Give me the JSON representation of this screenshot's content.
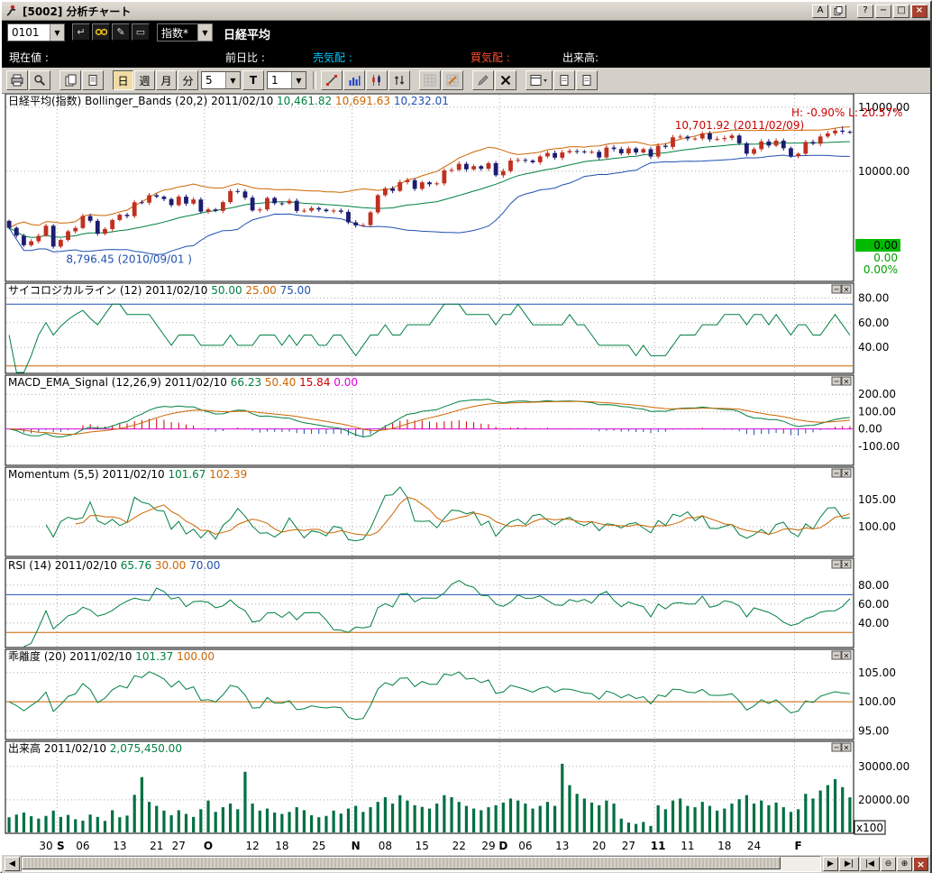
{
  "window": {
    "title": "[5002]  分析チャート",
    "a_button": "A",
    "help_button": "?",
    "min_button": "−",
    "max_button": "□",
    "close_button": "×"
  },
  "symbol_bar": {
    "code": "0101",
    "category": "指数*",
    "instrument": "日経平均"
  },
  "info_bar": {
    "current": "現在値 :",
    "prev_diff": "前日比 :",
    "sell_quote": "売気配 :",
    "buy_quote": "買気配 :",
    "volume": "出来高:"
  },
  "period_toolbar": {
    "daily": "日",
    "weekly": "週",
    "monthly": "月",
    "minutes": "分",
    "minute_interval": "5",
    "tick": "T",
    "bar_count": "1"
  },
  "scrollbar": {
    "left": "◀",
    "right": "▶",
    "skip_end": "▶|",
    "skip_start": "|◀",
    "zoom_out": "⊖",
    "zoom_in": "⊕",
    "close": "×"
  },
  "chart_data": {
    "type": "multi-panel-stock",
    "instrument": "日経平均(指数)",
    "date": "2011/02/10",
    "close": [
      9116,
      8995,
      8845,
      8906,
      8991,
      9149,
      8824,
      8927,
      9062,
      9114,
      9301,
      9226,
      9024,
      9098,
      9239,
      9321,
      9299,
      9516,
      9509,
      9626,
      9602,
      9566,
      9471,
      9603,
      9495,
      9559,
      9369,
      9404,
      9381,
      9518,
      9691,
      9684,
      9588,
      9388,
      9403,
      9583,
      9500,
      9498,
      9539,
      9381,
      9385,
      9426,
      9401,
      9377,
      9387,
      9366,
      9202,
      9154,
      9159,
      9358,
      9626,
      9732,
      9694,
      9830,
      9861,
      9725,
      9827,
      9797,
      9811,
      10014,
      10022,
      10116,
      10030,
      10079,
      10039,
      10126,
      9937,
      10004,
      10168,
      10178,
      10167,
      10141,
      10232,
      10285,
      10212,
      10294,
      10316,
      10310,
      10304,
      10304,
      10216,
      10371,
      10347,
      10280,
      10356,
      10293,
      10345,
      10229,
      10399,
      10380,
      10530,
      10541,
      10511,
      10512,
      10590,
      10499,
      10503,
      10519,
      10558,
      10437,
      10275,
      10346,
      10465,
      10402,
      10478,
      10360,
      10237,
      10274,
      10457,
      10431,
      10543,
      10592,
      10635,
      10617,
      10605
    ],
    "volume_x100": [
      14800,
      15600,
      16200,
      15100,
      14400,
      15200,
      16800,
      14900,
      15500,
      14200,
      13800,
      15600,
      14900,
      13700,
      16900,
      14800,
      15300,
      21500,
      26800,
      19400,
      18200,
      16800,
      15400,
      16900,
      15800,
      14900,
      17200,
      19800,
      16400,
      17800,
      18900,
      17200,
      28400,
      18900,
      16800,
      17400,
      16200,
      15800,
      16400,
      17800,
      16900,
      15400,
      14800,
      15200,
      16800,
      15900,
      17400,
      18200,
      16400,
      17800,
      19400,
      20800,
      18900,
      21400,
      19800,
      18400,
      17900,
      17400,
      18900,
      21400,
      20800,
      19400,
      18200,
      17400,
      16900,
      17800,
      18400,
      19200,
      20400,
      19800,
      18900,
      17400,
      18200,
      19400,
      18200,
      30800,
      24400,
      21800,
      20400,
      19200,
      18400,
      19800,
      18900,
      14400,
      13200,
      12800,
      13400,
      12200,
      18400,
      17200,
      19800,
      20400,
      18200,
      17800,
      19400,
      18200,
      16800,
      17400,
      18900,
      20200,
      21400,
      18900,
      19800,
      18400,
      19200,
      17800,
      16400,
      17200,
      21800,
      20400,
      22800,
      24400,
      26200,
      23800,
      20754
    ],
    "high_override": {
      "113": 10701.92
    },
    "low_override": {
      "7": 8796.45
    },
    "x_ticks": [
      {
        "i": 5,
        "label": "30"
      },
      {
        "i": 7,
        "label": "S",
        "month": true
      },
      {
        "i": 10,
        "label": "06"
      },
      {
        "i": 15,
        "label": "13"
      },
      {
        "i": 20,
        "label": "21"
      },
      {
        "i": 23,
        "label": "27"
      },
      {
        "i": 27,
        "label": "O",
        "month": true
      },
      {
        "i": 33,
        "label": "12"
      },
      {
        "i": 37,
        "label": "18"
      },
      {
        "i": 42,
        "label": "25"
      },
      {
        "i": 47,
        "label": "N",
        "month": true
      },
      {
        "i": 51,
        "label": "08"
      },
      {
        "i": 56,
        "label": "15"
      },
      {
        "i": 61,
        "label": "22"
      },
      {
        "i": 65,
        "label": "29"
      },
      {
        "i": 67,
        "label": "D",
        "month": true
      },
      {
        "i": 70,
        "label": "06"
      },
      {
        "i": 75,
        "label": "13"
      },
      {
        "i": 80,
        "label": "20"
      },
      {
        "i": 84,
        "label": "27"
      },
      {
        "i": 88,
        "label": "11",
        "month": true
      },
      {
        "i": 92,
        "label": "11"
      },
      {
        "i": 97,
        "label": "18"
      },
      {
        "i": 101,
        "label": "24"
      },
      {
        "i": 107,
        "label": "F",
        "month": true
      }
    ],
    "month_lines": [
      7,
      27,
      47,
      67,
      88,
      107
    ],
    "right_values": [
      {
        "text": "0.00",
        "color": "#000000",
        "bg": "#00bb00"
      },
      {
        "text": "0.00",
        "color": "#00a000"
      },
      {
        "text": "0.00%",
        "color": "#00a000"
      }
    ],
    "panels": [
      {
        "id": "main",
        "header_segments": [
          {
            "text": "日経平均(指数) Bollinger_Bands (20,2) 2011/02/10 ",
            "color": "#000000"
          },
          {
            "text": "10,461.82 ",
            "color": "#008040"
          },
          {
            "text": "10,691.63 ",
            "color": "#cc6600"
          },
          {
            "text": "10,232.01",
            "color": "#2050b0"
          }
        ],
        "ylim": [
          8280,
          11210
        ],
        "y_ticks": [
          10000,
          11000
        ],
        "colors": {
          "up": "#c03020",
          "down": "#1c1c70",
          "boll_mid": "#008040",
          "boll_upper": "#cc6600",
          "boll_lower": "#2050b0"
        },
        "annotations": {
          "high_low": {
            "text": "H: -0.90%  L: 20.57%",
            "color": "#cc0000"
          },
          "high": {
            "text": "10,701.92 (2011/02/09)",
            "color": "#cc0000"
          },
          "low": {
            "text": "8,796.45 (2010/09/01 )",
            "color": "#2050b0"
          }
        }
      },
      {
        "id": "psych",
        "header_segments": [
          {
            "text": "サイコロジカルライン (12) 2011/02/10 ",
            "color": "#000000"
          },
          {
            "text": "50.00 ",
            "color": "#008040"
          },
          {
            "text": "25.00 ",
            "color": "#cc6600"
          },
          {
            "text": "75.00",
            "color": "#2050b0"
          }
        ],
        "ylim": [
          19,
          92
        ],
        "y_ticks": [
          40,
          60,
          80
        ],
        "hlines": [
          {
            "v": 25,
            "color": "#cc6600"
          },
          {
            "v": 75,
            "color": "#2050b0"
          }
        ],
        "colors": {
          "line": "#008040"
        }
      },
      {
        "id": "macd",
        "header_segments": [
          {
            "text": "MACD_EMA_Signal (12,26,9) 2011/02/10 ",
            "color": "#000000"
          },
          {
            "text": "66.23 ",
            "color": "#008040"
          },
          {
            "text": "50.40 ",
            "color": "#cc6600"
          },
          {
            "text": "15.84 ",
            "color": "#cc0000"
          },
          {
            "text": "0.00",
            "color": "#dd00dd"
          }
        ],
        "ylim": [
          -210,
          310
        ],
        "y_ticks": [
          -100,
          0,
          100,
          200
        ],
        "hlines": [
          {
            "v": 0,
            "color": "#dd00dd"
          }
        ],
        "colors": {
          "macd": "#008040",
          "signal": "#cc6600",
          "hist_pos": "#cc0000",
          "hist_neg": "#2050b0"
        }
      },
      {
        "id": "momentum",
        "header_segments": [
          {
            "text": "Momentum (5,5) 2011/02/10 ",
            "color": "#000000"
          },
          {
            "text": "101.67 ",
            "color": "#008040"
          },
          {
            "text": "102.39",
            "color": "#cc6600"
          }
        ],
        "ylim": [
          94.5,
          111
        ],
        "y_ticks": [
          100,
          105
        ],
        "colors": {
          "line": "#008040",
          "ma": "#cc6600"
        }
      },
      {
        "id": "rsi",
        "header_segments": [
          {
            "text": "RSI (14) 2011/02/10 ",
            "color": "#000000"
          },
          {
            "text": "65.76 ",
            "color": "#008040"
          },
          {
            "text": "30.00 ",
            "color": "#cc6600"
          },
          {
            "text": "70.00",
            "color": "#2050b0"
          }
        ],
        "ylim": [
          14,
          108.6
        ],
        "y_ticks": [
          40,
          60,
          80
        ],
        "hlines": [
          {
            "v": 30,
            "color": "#cc6600"
          },
          {
            "v": 70,
            "color": "#2050b0"
          }
        ],
        "colors": {
          "line": "#008040"
        }
      },
      {
        "id": "kairi",
        "header_segments": [
          {
            "text": "乖離度 (20) 2011/02/10 ",
            "color": "#000000"
          },
          {
            "text": "101.37 ",
            "color": "#008040"
          },
          {
            "text": "100.00",
            "color": "#cc6600"
          }
        ],
        "ylim": [
          93.5,
          109
        ],
        "y_ticks": [
          95,
          100,
          105
        ],
        "hlines": [
          {
            "v": 100,
            "color": "#cc6600"
          }
        ],
        "colors": {
          "line": "#008040"
        }
      },
      {
        "id": "volume",
        "header_segments": [
          {
            "text": "出来高 2011/02/10 ",
            "color": "#000000"
          },
          {
            "text": "2,075,450.00",
            "color": "#008040"
          }
        ],
        "ylim": [
          10000,
          37500
        ],
        "y_ticks": [
          20000,
          30000
        ],
        "unit_label": "x100",
        "colors": {
          "bar": "#007040"
        }
      }
    ]
  }
}
